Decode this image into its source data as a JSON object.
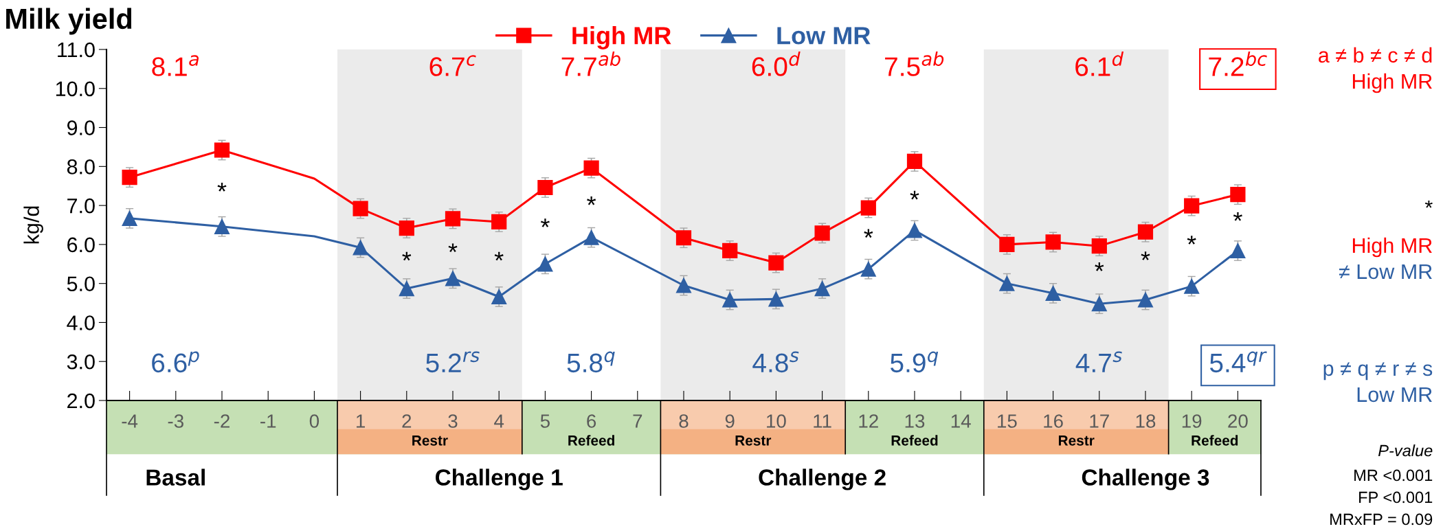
{
  "chart_data": {
    "type": "line",
    "title": "Milk yield",
    "ylabel": "kg/d",
    "categories": [
      "-4",
      "-3",
      "-2",
      "-1",
      "0",
      "1",
      "2",
      "3",
      "4",
      "5",
      "6",
      "7",
      "8",
      "9",
      "10",
      "11",
      "12",
      "13",
      "14",
      "15",
      "16",
      "17",
      "18",
      "19",
      "20"
    ],
    "series": [
      {
        "name": "High MR",
        "color": "#ff0000",
        "marker": "square",
        "values": [
          7.72,
          null,
          8.42,
          null,
          7.69,
          6.92,
          6.42,
          6.66,
          6.58,
          7.46,
          7.96,
          null,
          6.17,
          5.84,
          5.53,
          6.29,
          6.94,
          8.13,
          null,
          6.0,
          6.06,
          5.96,
          6.32,
          6.99,
          7.28
        ],
        "errors": [
          0.25,
          null,
          0.25,
          null,
          null,
          0.25,
          0.25,
          0.25,
          0.25,
          0.25,
          0.25,
          null,
          0.25,
          0.25,
          0.25,
          0.25,
          0.25,
          0.25,
          null,
          0.25,
          0.25,
          0.25,
          0.25,
          0.25,
          0.25
        ]
      },
      {
        "name": "Low MR",
        "color": "#2e5fa3",
        "marker": "triangle",
        "values": [
          6.67,
          null,
          6.46,
          null,
          6.21,
          5.92,
          4.87,
          5.13,
          4.66,
          5.5,
          6.18,
          null,
          4.95,
          4.58,
          4.6,
          4.87,
          5.37,
          6.36,
          null,
          5.0,
          4.75,
          4.48,
          4.58,
          4.93,
          5.84
        ],
        "errors": [
          0.25,
          null,
          0.25,
          null,
          null,
          0.25,
          0.25,
          0.25,
          0.25,
          0.25,
          0.25,
          null,
          0.25,
          0.25,
          0.25,
          0.25,
          0.25,
          0.25,
          null,
          0.25,
          0.25,
          0.25,
          0.25,
          0.25,
          0.25
        ]
      }
    ],
    "ylim": [
      2.0,
      11.0
    ],
    "yticks": [
      {
        "value": 2,
        "label": "2.0"
      },
      {
        "value": 3,
        "label": "3.0"
      },
      {
        "value": 4,
        "label": "4.0"
      },
      {
        "value": 5,
        "label": "5.0"
      },
      {
        "value": 6,
        "label": "6.0"
      },
      {
        "value": 7,
        "label": "7.0"
      },
      {
        "value": 8,
        "label": "8.0"
      },
      {
        "value": 9,
        "label": "9.0"
      },
      {
        "value": 10,
        "label": "10.0"
      },
      {
        "value": 11,
        "label": "11.0"
      }
    ],
    "grid": false,
    "legend": "top",
    "line_style": "solid",
    "bands": [
      {
        "axis": "x",
        "from": "1",
        "to": "4",
        "label": "Restr",
        "color": "#ebebeb"
      },
      {
        "axis": "x",
        "from": "8",
        "to": "11",
        "label": "Restr",
        "color": "#ebebeb"
      },
      {
        "axis": "x",
        "from": "15",
        "to": "18",
        "label": "Restr",
        "color": "#ebebeb"
      }
    ],
    "annotations": [
      "8.1$^{a}$",
      "6.7$^{c}$",
      "7.7$^{ab}$",
      "6.0$^{d}$",
      "7.5$^{ab}$",
      "6.1$^{d}$",
      "7.2$^{bc}$",
      "6.6$^{p}$",
      "5.2$^{rs}$",
      "5.8$^{q}$",
      "4.8$^{s}$",
      "5.9$^{q}$",
      "4.7$^{s}$",
      "5.4$^{qr}$",
      "*",
      "*",
      "*",
      "*",
      "*",
      "*",
      "*",
      "*",
      "*",
      "*",
      "*",
      "*",
      "Refeed",
      "Refeed",
      "Refeed",
      "Basal",
      "Challenge 1",
      "Challenge 2",
      "Challenge 3",
      "a ≠ b ≠ c ≠ d",
      "High MR",
      "*",
      "High MR",
      "≠ Low MR",
      "p ≠ q ≠ r ≠ s",
      "Low MR",
      "P-value",
      "MR <0.001",
      "FP <0.001",
      "MRxFP = 0.09"
    ]
  }
}
